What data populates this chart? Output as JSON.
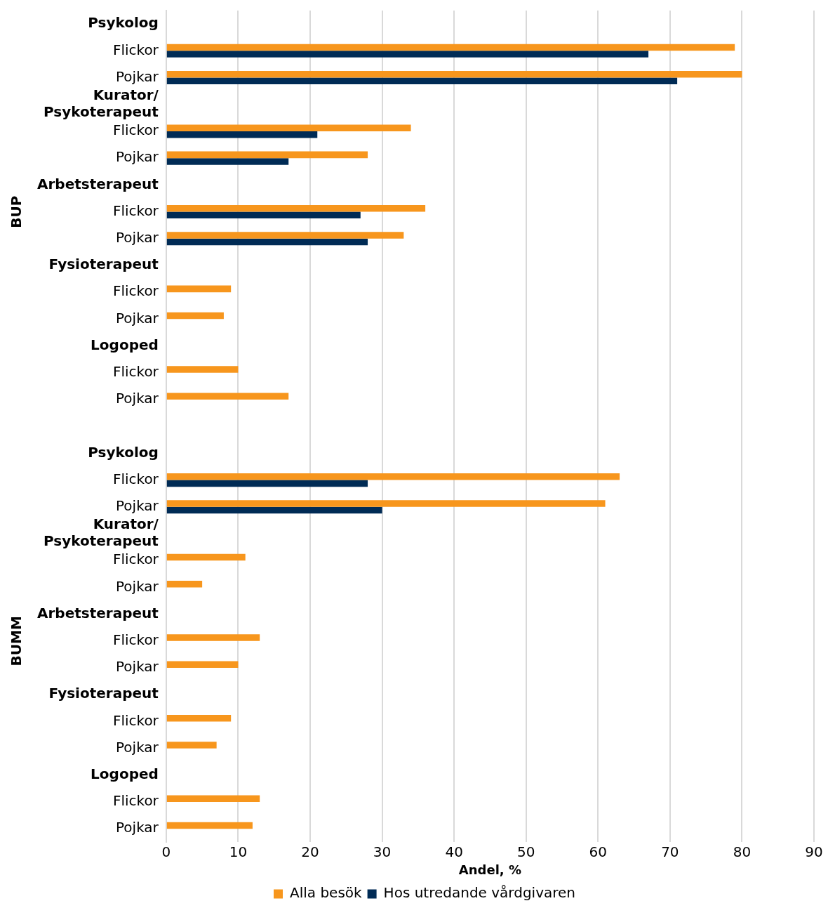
{
  "chart_data": {
    "type": "bar",
    "orientation": "horizontal",
    "xlabel": "Andel, %",
    "categories": [
      "Psykolog",
      "Flickor",
      "Pojkar",
      "Kurator/\nPsykoterapeut",
      "Flickor",
      "Pojkar",
      "Arbetsterapeut",
      "Flickor",
      "Pojkar",
      "Fysioterapeut",
      "Flickor",
      "Pojkar",
      "Logoped",
      "Flickor",
      "Pojkar",
      null,
      "Psykolog",
      "Flickor",
      "Pojkar",
      "Kurator/\nPsykoterapeut",
      "Flickor",
      "Pojkar",
      "Arbetsterapeut",
      "Flickor",
      "Pojkar",
      "Fysioterapeut",
      "Flickor",
      "Pojkar",
      "Logoped",
      "Flickor",
      "Pojkar"
    ],
    "series": [
      {
        "name": "Alla besök",
        "color": "#f7961d",
        "values": [
          null,
          79,
          80,
          null,
          34,
          28,
          null,
          36,
          33,
          null,
          9,
          8,
          null,
          10,
          17,
          null,
          null,
          63,
          61,
          null,
          11,
          5,
          null,
          13,
          10,
          null,
          9,
          7,
          null,
          13,
          12
        ]
      },
      {
        "name": "Hos utredande vårdgivaren",
        "color": "#002b55",
        "values": [
          null,
          67,
          71,
          null,
          21,
          17,
          null,
          27,
          28,
          null,
          null,
          null,
          null,
          null,
          null,
          null,
          null,
          28,
          30,
          null,
          null,
          null,
          null,
          null,
          null,
          null,
          null,
          null,
          null,
          null,
          null
        ]
      }
    ],
    "xlim": [
      0,
      90
    ],
    "xticks": [
      0,
      10,
      20,
      30,
      40,
      50,
      60,
      70,
      80,
      90
    ],
    "grid": "x",
    "legend": "bottom",
    "annotations": [
      "BUP",
      "BUMM"
    ]
  }
}
